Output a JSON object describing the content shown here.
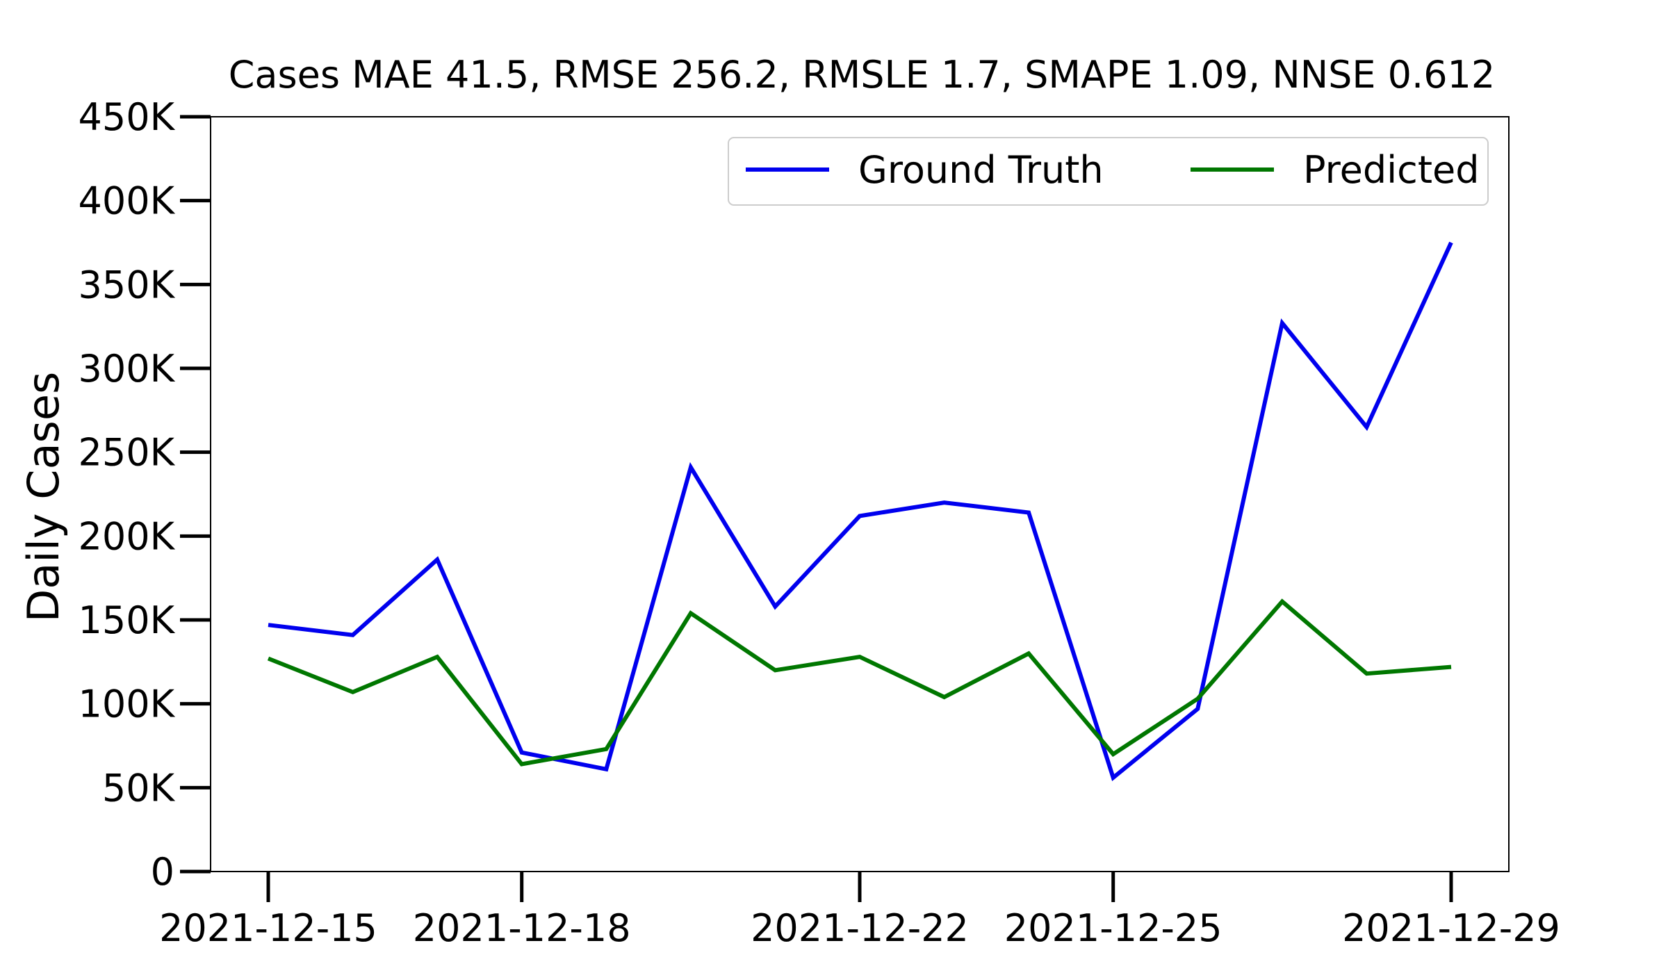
{
  "chart_data": {
    "type": "line",
    "title": "Cases MAE 41.5, RMSE 256.2, RMSLE 1.7, SMAPE 1.09, NNSE 0.612",
    "xlabel": "",
    "ylabel": "Daily Cases",
    "x": [
      "2021-12-15",
      "2021-12-16",
      "2021-12-17",
      "2021-12-18",
      "2021-12-19",
      "2021-12-20",
      "2021-12-21",
      "2021-12-22",
      "2021-12-23",
      "2021-12-24",
      "2021-12-25",
      "2021-12-26",
      "2021-12-27",
      "2021-12-28",
      "2021-12-29"
    ],
    "xticks": [
      {
        "date": "2021-12-15",
        "label": "2021-12-15"
      },
      {
        "date": "2021-12-18",
        "label": "2021-12-18"
      },
      {
        "date": "2021-12-22",
        "label": "2021-12-22"
      },
      {
        "date": "2021-12-25",
        "label": "2021-12-25"
      },
      {
        "date": "2021-12-29",
        "label": "2021-12-29"
      }
    ],
    "yticks": [
      {
        "value": 0,
        "label": "0"
      },
      {
        "value": 50000,
        "label": "50K"
      },
      {
        "value": 100000,
        "label": "100K"
      },
      {
        "value": 150000,
        "label": "150K"
      },
      {
        "value": 200000,
        "label": "200K"
      },
      {
        "value": 250000,
        "label": "250K"
      },
      {
        "value": 300000,
        "label": "300K"
      },
      {
        "value": 350000,
        "label": "350K"
      },
      {
        "value": 400000,
        "label": "400K"
      },
      {
        "value": 450000,
        "label": "450K"
      }
    ],
    "ylim": [
      0,
      450000
    ],
    "grid": false,
    "legend_position": "top-right",
    "series": [
      {
        "name": "Ground Truth",
        "color": "#0000ee",
        "values": [
          147000,
          141000,
          186000,
          71000,
          61000,
          241000,
          158000,
          212000,
          220000,
          214000,
          56000,
          97000,
          327000,
          265000,
          375000
        ]
      },
      {
        "name": "Predicted",
        "color": "#007700",
        "values": [
          127000,
          107000,
          128000,
          64000,
          73000,
          154000,
          120000,
          128000,
          104000,
          130000,
          70000,
          103000,
          161000,
          118000,
          122000
        ]
      }
    ]
  }
}
